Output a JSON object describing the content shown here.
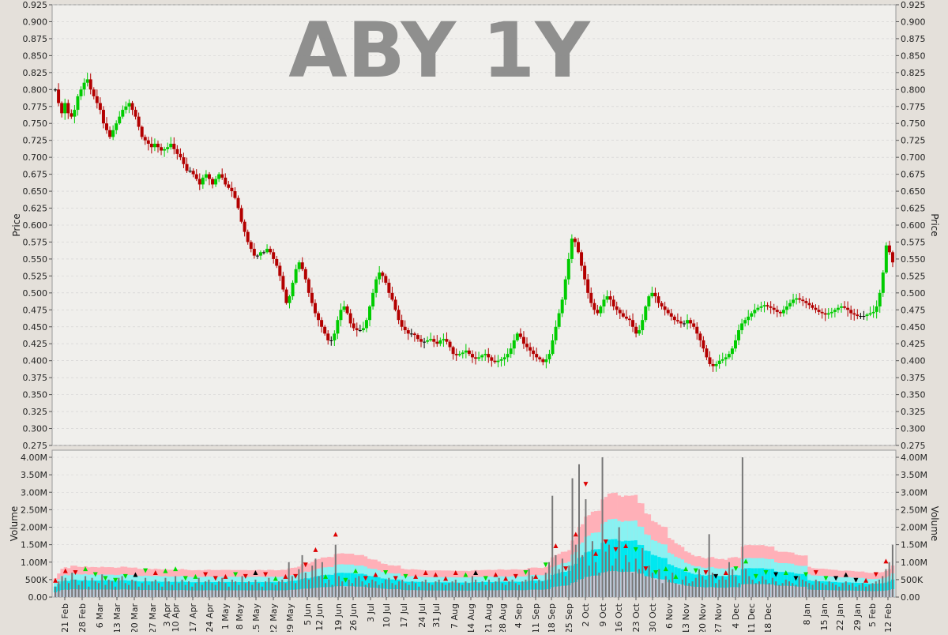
{
  "chart_data": [
    {
      "type": "candlestick",
      "title": "ABY 1Y",
      "ylabel": "Price",
      "ylim": [
        0.275,
        0.925
      ],
      "yticks": [
        "0.925",
        "0.900",
        "0.875",
        "0.850",
        "0.825",
        "0.800",
        "0.775",
        "0.750",
        "0.725",
        "0.700",
        "0.675",
        "0.650",
        "0.625",
        "0.600",
        "0.575",
        "0.550",
        "0.525",
        "0.500",
        "0.475",
        "0.450",
        "0.425",
        "0.400",
        "0.375",
        "0.350",
        "0.325",
        "0.300",
        "0.275"
      ],
      "grid": true,
      "colors": {
        "up": "#00cc00",
        "down": "#b30000",
        "flat": "#000000",
        "background": "#f0efec",
        "grid": "#cfcfcf"
      },
      "close_series": [
        0.8,
        0.78,
        0.765,
        0.78,
        0.765,
        0.76,
        0.77,
        0.79,
        0.8,
        0.81,
        0.815,
        0.8,
        0.79,
        0.78,
        0.77,
        0.75,
        0.74,
        0.73,
        0.74,
        0.75,
        0.76,
        0.77,
        0.775,
        0.78,
        0.77,
        0.76,
        0.745,
        0.73,
        0.725,
        0.72,
        0.715,
        0.72,
        0.715,
        0.71,
        0.712,
        0.715,
        0.72,
        0.712,
        0.705,
        0.7,
        0.69,
        0.68,
        0.68,
        0.675,
        0.668,
        0.66,
        0.67,
        0.675,
        0.668,
        0.66,
        0.668,
        0.675,
        0.67,
        0.66,
        0.655,
        0.65,
        0.64,
        0.625,
        0.605,
        0.59,
        0.575,
        0.565,
        0.555,
        0.555,
        0.56,
        0.56,
        0.565,
        0.56,
        0.55,
        0.54,
        0.525,
        0.505,
        0.485,
        0.495,
        0.515,
        0.535,
        0.545,
        0.535,
        0.52,
        0.5,
        0.485,
        0.47,
        0.46,
        0.45,
        0.44,
        0.43,
        0.43,
        0.44,
        0.46,
        0.475,
        0.48,
        0.47,
        0.455,
        0.448,
        0.445,
        0.445,
        0.448,
        0.46,
        0.48,
        0.5,
        0.52,
        0.53,
        0.525,
        0.515,
        0.5,
        0.49,
        0.475,
        0.46,
        0.45,
        0.445,
        0.44,
        0.44,
        0.438,
        0.432,
        0.428,
        0.428,
        0.43,
        0.432,
        0.428,
        0.425,
        0.43,
        0.432,
        0.428,
        0.42,
        0.41,
        0.408,
        0.41,
        0.412,
        0.415,
        0.41,
        0.405,
        0.403,
        0.405,
        0.408,
        0.41,
        0.405,
        0.4,
        0.398,
        0.4,
        0.402,
        0.405,
        0.41,
        0.418,
        0.43,
        0.44,
        0.435,
        0.425,
        0.42,
        0.415,
        0.41,
        0.405,
        0.402,
        0.398,
        0.402,
        0.41,
        0.43,
        0.45,
        0.47,
        0.49,
        0.52,
        0.55,
        0.58,
        0.575,
        0.56,
        0.54,
        0.52,
        0.5,
        0.485,
        0.475,
        0.47,
        0.48,
        0.49,
        0.495,
        0.49,
        0.48,
        0.475,
        0.47,
        0.465,
        0.462,
        0.46,
        0.45,
        0.44,
        0.445,
        0.46,
        0.48,
        0.495,
        0.5,
        0.495,
        0.485,
        0.48,
        0.475,
        0.47,
        0.465,
        0.46,
        0.458,
        0.455,
        0.455,
        0.46,
        0.455,
        0.45,
        0.44,
        0.43,
        0.418,
        0.405,
        0.395,
        0.392,
        0.395,
        0.4,
        0.402,
        0.405,
        0.41,
        0.418,
        0.43,
        0.445,
        0.455,
        0.46,
        0.465,
        0.47,
        0.475,
        0.478,
        0.48,
        0.482,
        0.48,
        0.478,
        0.475,
        0.472,
        0.47,
        0.475,
        0.48,
        0.485,
        0.49,
        0.492,
        0.49,
        0.488,
        0.485,
        0.482,
        0.478,
        0.475,
        0.472,
        0.47,
        0.468,
        0.47,
        0.472,
        0.475,
        0.478,
        0.48,
        0.478,
        0.475,
        0.47,
        0.468,
        0.466,
        0.465,
        0.466,
        0.468,
        0.47,
        0.472,
        0.48,
        0.5,
        0.53,
        0.57,
        0.56,
        0.545
      ]
    },
    {
      "type": "bar",
      "ylabel": "Volume",
      "ylim": [
        0,
        4.0
      ],
      "unit": "M",
      "yticks": [
        "4.00M",
        "3.50M",
        "3.00M",
        "2.50M",
        "2.00M",
        "1.50M",
        "1.00M",
        "500K",
        "0.00"
      ],
      "categories": [
        "21 Feb",
        "28 Feb",
        "6 Mar",
        "13 Mar",
        "20 Mar",
        "27 Mar",
        "3 Apr",
        "10 Apr",
        "17 Apr",
        "24 Apr",
        "1 May",
        "8 May",
        "15 May",
        "22 May",
        "29 May",
        "5 Jun",
        "12 Jun",
        "19 Jun",
        "26 Jun",
        "3 Jul",
        "10 Jul",
        "17 Jul",
        "24 Jul",
        "31 Jul",
        "7 Aug",
        "14 Aug",
        "21 Aug",
        "28 Aug",
        "4 Sep",
        "11 Sep",
        "18 Sep",
        "25 Sep",
        "2 Oct",
        "9 Oct",
        "16 Oct",
        "23 Oct",
        "30 Oct",
        "6 Nov",
        "13 Nov",
        "20 Nov",
        "27 Nov",
        "4 Dec",
        "11 Dec",
        "18 Dec",
        "8 Jan",
        "15 Jan",
        "22 Jan",
        "29 Jan",
        "5 Feb",
        "12 Feb"
      ],
      "colors": {
        "bar": "#777777",
        "band_outer": "#ffb0b8",
        "band_mid": "#88f2f2",
        "band_inner": "#00e8f0",
        "band_low": "#c8c8d8",
        "signal_up": "#00dd00",
        "signal_down": "#dd0000",
        "signal_neutral": "#000000"
      },
      "volume_millions": [
        0.3,
        0.45,
        0.6,
        0.55,
        0.4,
        0.7,
        0.5,
        0.35,
        0.45,
        0.6,
        0.3,
        0.55,
        0.45,
        0.4,
        0.65,
        0.35,
        0.5,
        0.45,
        0.3,
        0.55,
        0.6,
        0.4,
        0.35,
        0.5,
        0.45,
        0.3,
        0.4,
        0.55,
        0.35,
        0.45,
        0.5,
        0.4,
        0.3,
        0.55,
        0.45,
        0.35,
        0.6,
        0.4,
        0.5,
        0.35,
        0.45,
        0.3,
        0.4,
        0.55,
        0.35,
        0.45,
        0.5,
        0.4,
        0.35,
        0.45,
        0.55,
        0.4,
        0.3,
        0.5,
        0.45,
        0.35,
        0.6,
        0.4,
        0.45,
        0.35,
        0.5,
        0.4,
        0.3,
        0.45,
        0.55,
        0.4,
        0.35,
        0.45,
        0.5,
        0.4,
        1.0,
        0.6,
        0.4,
        0.8,
        1.2,
        0.7,
        0.5,
        0.9,
        1.1,
        0.6,
        1.0,
        0.4,
        0.5,
        0.35,
        1.5,
        0.6,
        0.45,
        0.3,
        0.5,
        0.4,
        0.55,
        0.6,
        0.45,
        0.35,
        0.4,
        0.5,
        0.45,
        0.35,
        0.4,
        0.5,
        0.55,
        0.4,
        0.35,
        0.45,
        0.5,
        0.4,
        0.35,
        0.45,
        0.4,
        0.3,
        0.45,
        0.5,
        0.4,
        0.35,
        0.45,
        0.5,
        0.4,
        0.35,
        0.4,
        0.45,
        0.5,
        0.4,
        0.35,
        0.45,
        0.4,
        0.6,
        0.5,
        0.4,
        0.45,
        0.35,
        0.5,
        0.4,
        0.45,
        0.55,
        0.4,
        0.35,
        0.45,
        0.5,
        0.4,
        0.35,
        0.45,
        0.5,
        0.8,
        0.6,
        0.4,
        0.5,
        0.45,
        0.7,
        1.0,
        2.9,
        1.2,
        0.8,
        1.1,
        0.6,
        0.9,
        3.4,
        1.5,
        3.8,
        1.2,
        2.8,
        0.9,
        1.6,
        1.0,
        0.7,
        4.0,
        1.3,
        1.5,
        0.9,
        1.1,
        2.0,
        0.8,
        1.2,
        1.0,
        0.7,
        1.1,
        0.8,
        1.4,
        0.6,
        0.9,
        0.7,
        0.5,
        0.8,
        0.4,
        0.6,
        0.5,
        0.7,
        0.4,
        0.35,
        0.5,
        0.6,
        0.4,
        0.45,
        0.55,
        0.8,
        0.6,
        0.5,
        1.8,
        0.7,
        0.4,
        0.5,
        0.6,
        0.5,
        1.0,
        0.8,
        0.6,
        0.4,
        4.0,
        0.8,
        0.6,
        0.5,
        0.4,
        0.45,
        0.6,
        0.5,
        0.4,
        0.55,
        0.45,
        0.35,
        0.4,
        0.5,
        0.45,
        0.4,
        0.35,
        0.6,
        0.5,
        0.45,
        0.4,
        0.35,
        0.5,
        0.45,
        0.4,
        0.35,
        0.45,
        0.4,
        0.35,
        0.3,
        0.4,
        0.45,
        0.35,
        0.4,
        0.3,
        0.35,
        0.4,
        0.3,
        0.35,
        0.4,
        0.45,
        0.5,
        0.6,
        0.8,
        1.0,
        1.5
      ]
    }
  ]
}
